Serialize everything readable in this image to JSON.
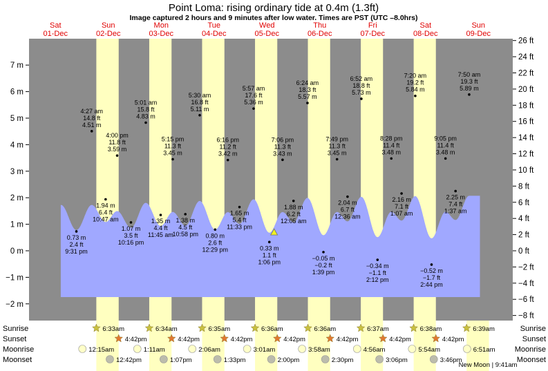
{
  "title": "Point Loma: rising  ordinary tide at 0.4m (1.3ft)",
  "subtitle": "Image captured 2 hours and 9 minutes after low water. Times are PST (UTC –8.0hrs)",
  "colors": {
    "night": "#8c8c8c",
    "day": "#ffffc0",
    "water": "#a0a8ff",
    "day_label": "#e00000",
    "sunrise_icon": "#c8c040",
    "sunset_icon": "#e07830",
    "moonrise_icon": "#ffffc8",
    "moonset_icon": "#bcbcac",
    "now_marker": "#f0f020"
  },
  "days": [
    {
      "dow": "Sat",
      "date": "01-Dec"
    },
    {
      "dow": "Sun",
      "date": "02-Dec"
    },
    {
      "dow": "Mon",
      "date": "03-Dec"
    },
    {
      "dow": "Tue",
      "date": "04-Dec"
    },
    {
      "dow": "Wed",
      "date": "05-Dec"
    },
    {
      "dow": "Thu",
      "date": "06-Dec"
    },
    {
      "dow": "Fri",
      "date": "07-Dec"
    },
    {
      "dow": "Sat",
      "date": "08-Dec"
    },
    {
      "dow": "Sun",
      "date": "09-Dec"
    }
  ],
  "chart_data": {
    "type": "area",
    "ylabel_left": "m",
    "ylabel_right": "ft",
    "y_ticks_m": [
      "7 m",
      "6 m",
      "5 m",
      "4 m",
      "3 m",
      "2 m",
      "1 m",
      "0 m",
      "−1 m",
      "−2 m"
    ],
    "y_ticks_ft": [
      "26 ft",
      "24 ft",
      "22 ft",
      "20 ft",
      "18 ft",
      "16 ft",
      "14 ft",
      "12 ft",
      "10 ft",
      "8 ft",
      "6 ft",
      "4 ft",
      "2 ft",
      "0 ft",
      "−2 ft",
      "−4 ft",
      "−6 ft",
      "−8 ft"
    ],
    "ylim_m": [
      -2.5,
      7.6
    ],
    "tides": [
      {
        "time": "9:31 pm",
        "m": "0.73 m",
        "ft": "2.4 ft",
        "t": 0.896,
        "h": 0.73,
        "lp": "below"
      },
      {
        "time": "4:27 am",
        "m": "4.51 m",
        "ft": "14.8 ft",
        "t": 1.186,
        "h": 4.51,
        "lp": "above"
      },
      {
        "time": "10:47 am",
        "m": "1.94 m",
        "ft": "6.4 ft",
        "t": 1.449,
        "h": 1.94,
        "lp": "below"
      },
      {
        "time": "4:00 pm",
        "m": "3.59 m",
        "ft": "11.8 ft",
        "t": 1.667,
        "h": 3.59,
        "lp": "above"
      },
      {
        "time": "10:16 pm",
        "m": "1.07 m",
        "ft": "3.5 ft",
        "t": 1.928,
        "h": 1.07,
        "lp": "below"
      },
      {
        "time": "5:01 am",
        "m": "4.83 m",
        "ft": "15.8 ft",
        "t": 2.209,
        "h": 4.83,
        "lp": "above"
      },
      {
        "time": "11:45 am",
        "m": "1.35 m",
        "ft": "4.4 ft",
        "t": 2.49,
        "h": 1.35,
        "lp": "below"
      },
      {
        "time": "5:15 pm",
        "m": "3.45 m",
        "ft": "11.3 ft",
        "t": 2.719,
        "h": 3.45,
        "lp": "above"
      },
      {
        "time": "10:58 pm",
        "m": "1.38 m",
        "ft": "4.5 ft",
        "t": 2.957,
        "h": 1.38,
        "lp": "below"
      },
      {
        "time": "5:30 am",
        "m": "5.11 m",
        "ft": "16.8 ft",
        "t": 3.229,
        "h": 5.11,
        "lp": "above"
      },
      {
        "time": "12:29 pm",
        "m": "0.80 m",
        "ft": "2.6 ft",
        "t": 3.52,
        "h": 0.8,
        "lp": "below"
      },
      {
        "time": "6:16 pm",
        "m": "3.42 m",
        "ft": "11.2 ft",
        "t": 3.761,
        "h": 3.42,
        "lp": "above"
      },
      {
        "time": "11:33 pm",
        "m": "1.65 m",
        "ft": "5.4 ft",
        "t": 3.981,
        "h": 1.65,
        "lp": "below"
      },
      {
        "time": "5:57 am",
        "m": "5.36 m",
        "ft": "17.6 ft",
        "t": 4.248,
        "h": 5.36,
        "lp": "above"
      },
      {
        "time": "1:06 pm",
        "m": "0.33 m",
        "ft": "1.1 ft",
        "t": 4.546,
        "h": 0.33,
        "lp": "below"
      },
      {
        "time": "7:06 pm",
        "m": "3.43 m",
        "ft": "11.3 ft",
        "t": 4.796,
        "h": 3.43,
        "lp": "above"
      },
      {
        "time": "12:05 am",
        "m": "1.88 m",
        "ft": "6.2 ft",
        "t": 5.003,
        "h": 1.88,
        "lp": "below"
      },
      {
        "time": "6:24 am",
        "m": "5.57 m",
        "ft": "18.3 ft",
        "t": 5.267,
        "h": 5.57,
        "lp": "above"
      },
      {
        "time": "1:39 pm",
        "m": "−0.05 m",
        "ft": "−0.2 ft",
        "t": 5.569,
        "h": -0.05,
        "lp": "below"
      },
      {
        "time": "7:49 pm",
        "m": "3.45 m",
        "ft": "11.3 ft",
        "t": 5.826,
        "h": 3.45,
        "lp": "above"
      },
      {
        "time": "12:36 am",
        "m": "2.04 m",
        "ft": "6.7 ft",
        "t": 6.025,
        "h": 2.04,
        "lp": "below"
      },
      {
        "time": "6:52 am",
        "m": "5.73 m",
        "ft": "18.8 ft",
        "t": 6.286,
        "h": 5.73,
        "lp": "above"
      },
      {
        "time": "2:12 pm",
        "m": "−0.34 m",
        "ft": "−1.1 ft",
        "t": 6.592,
        "h": -0.34,
        "lp": "below"
      },
      {
        "time": "8:28 pm",
        "m": "3.48 m",
        "ft": "11.4 ft",
        "t": 6.853,
        "h": 3.48,
        "lp": "above"
      },
      {
        "time": "1:07 am",
        "m": "2.16 m",
        "ft": "7.1 ft",
        "t": 7.047,
        "h": 2.16,
        "lp": "below"
      },
      {
        "time": "7:20 am",
        "m": "5.84 m",
        "ft": "19.2 ft",
        "t": 7.306,
        "h": 5.84,
        "lp": "above"
      },
      {
        "time": "2:44 pm",
        "m": "−0.52 m",
        "ft": "−1.7 ft",
        "t": 7.614,
        "h": -0.52,
        "lp": "below"
      },
      {
        "time": "9:05 pm",
        "m": "3.48 m",
        "ft": "11.4 ft",
        "t": 7.878,
        "h": 3.48,
        "lp": "above"
      },
      {
        "time": "1:37 am",
        "m": "2.25 m",
        "ft": "7.4 ft",
        "t": 8.068,
        "h": 2.25,
        "lp": "below"
      },
      {
        "time": "7:50 am",
        "m": "5.89 m",
        "ft": "19.3 ft",
        "t": 8.326,
        "h": 5.89,
        "lp": "above"
      }
    ],
    "now": {
      "t": 4.636,
      "h": 0.4
    },
    "grid": false
  },
  "rows": {
    "sunrise": {
      "label": "Sunrise",
      "times": [
        "6:33am",
        "6:34am",
        "6:35am",
        "6:36am",
        "6:36am",
        "6:37am",
        "6:38am",
        "6:39am"
      ],
      "t": [
        1.273,
        2.274,
        3.274,
        4.275,
        5.275,
        6.276,
        7.276,
        8.277
      ]
    },
    "sunset": {
      "label": "Sunset",
      "times": [
        "4:42pm",
        "4:42pm",
        "4:42pm",
        "4:42pm",
        "4:42pm",
        "4:42pm",
        "4:42pm"
      ],
      "t": [
        1.696,
        2.696,
        3.696,
        4.696,
        5.696,
        6.696,
        7.696
      ]
    },
    "moonrise": {
      "label": "Moonrise",
      "times": [
        "12:15am",
        "1:11am",
        "2:06am",
        "3:01am",
        "3:58am",
        "4:56am",
        "5:54am",
        "6:51am"
      ],
      "t": [
        1.01,
        2.049,
        3.088,
        4.126,
        5.165,
        6.206,
        7.246,
        8.285
      ]
    },
    "moonset": {
      "label": "Moonset",
      "times": [
        "12:42pm",
        "1:07pm",
        "1:33pm",
        "2:00pm",
        "2:30pm",
        "3:06pm",
        "3:46pm"
      ],
      "t": [
        1.529,
        2.547,
        3.565,
        4.583,
        5.604,
        6.629,
        7.657
      ]
    }
  },
  "footer_note": "New Moon | 9:41am"
}
